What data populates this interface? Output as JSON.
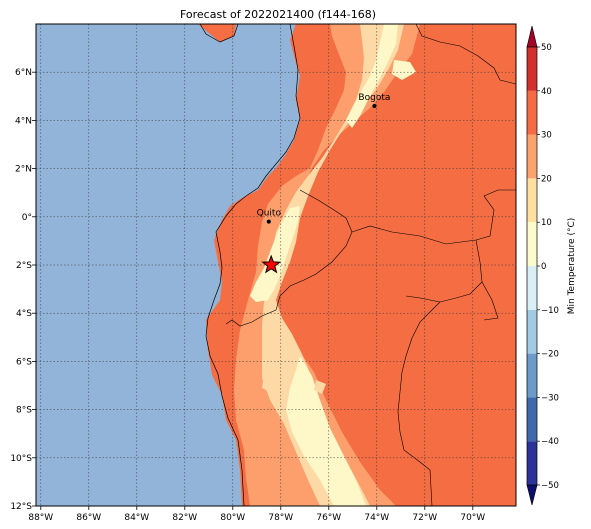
{
  "title": "Forecast of 2022021400 (f144-168)",
  "map": {
    "x_ticks": [
      {
        "label": "88°W",
        "lon": -88
      },
      {
        "label": "86°W",
        "lon": -86
      },
      {
        "label": "84°W",
        "lon": -84
      },
      {
        "label": "82°W",
        "lon": -82
      },
      {
        "label": "80°W",
        "lon": -80
      },
      {
        "label": "78°W",
        "lon": -78
      },
      {
        "label": "76°W",
        "lon": -76
      },
      {
        "label": "74°W",
        "lon": -74
      },
      {
        "label": "72°W",
        "lon": -72
      },
      {
        "label": "70°W",
        "lon": -70
      }
    ],
    "y_ticks": [
      {
        "label": "6°N",
        "lat": 6
      },
      {
        "label": "4°N",
        "lat": 4
      },
      {
        "label": "2°N",
        "lat": 2
      },
      {
        "label": "0°",
        "lat": 0
      },
      {
        "label": "2°S",
        "lat": -2
      },
      {
        "label": "4°S",
        "lat": -4
      },
      {
        "label": "6°S",
        "lat": -6
      },
      {
        "label": "8°S",
        "lat": -8
      },
      {
        "label": "10°S",
        "lat": -10
      },
      {
        "label": "12°S",
        "lat": -12
      }
    ],
    "cities": [
      {
        "name": "Quito",
        "lon": -78.5,
        "lat": -0.2
      },
      {
        "name": "Bogota",
        "lon": -74.1,
        "lat": 4.6
      }
    ],
    "marker": {
      "lon": -78.4,
      "lat": -2.0,
      "symbol": "star",
      "color": "#ff0000"
    },
    "colors": {
      "ocean": "#92b4d8",
      "warmest": "#f46d43",
      "warm": "#fc9f6c",
      "mild": "#fdd9a6",
      "cool": "#fef8c8"
    }
  },
  "colorbar": {
    "label": "Min Temperature (°C)",
    "ticks": [
      "50",
      "40",
      "30",
      "20",
      "10",
      "0",
      "−10",
      "−20",
      "−30",
      "−40",
      "−50"
    ],
    "colors": [
      "#0d0f70",
      "#2b339a",
      "#3f68ad",
      "#6d9bc9",
      "#a2cae3",
      "#d9eef5",
      "#fbfbcc",
      "#fde0a0",
      "#fba36e",
      "#f56b44",
      "#d32f2c",
      "#a30428"
    ]
  }
}
